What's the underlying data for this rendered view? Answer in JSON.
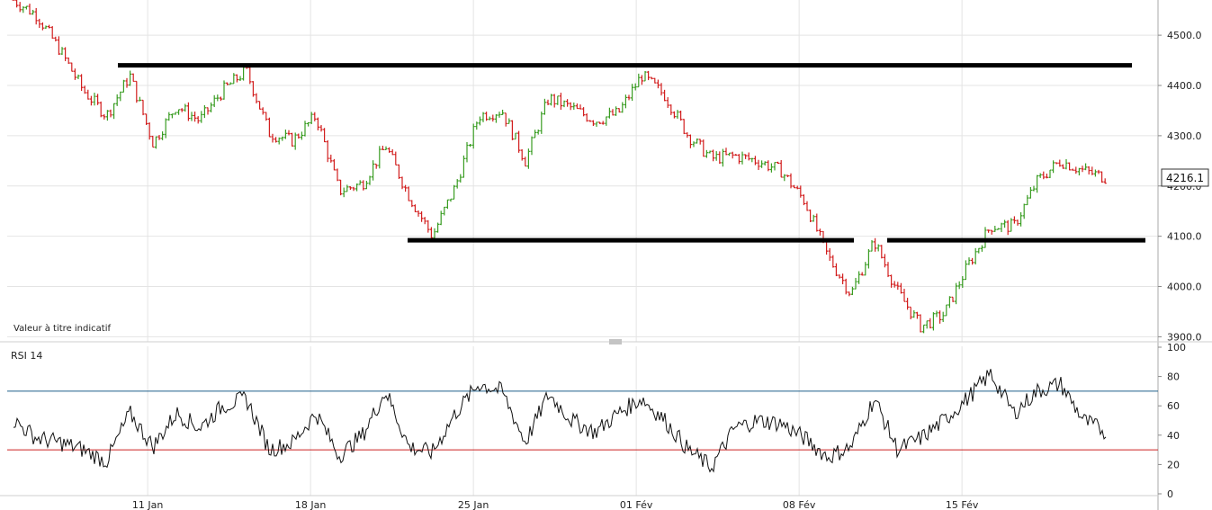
{
  "chart_data": {
    "type": "ohlc",
    "note": "Valeur à titre indicatif",
    "last_price": "4216.1",
    "x_labels": [
      "11 Jan",
      "18 Jan",
      "25 Jan",
      "01 Fév",
      "08 Fév",
      "15 Fév"
    ],
    "price_axis": {
      "ylim": [
        3890,
        4570
      ],
      "ticks": [
        3900,
        4000,
        4100,
        4200,
        4300,
        4400,
        4500
      ]
    },
    "colors": {
      "up": "#3a9d23",
      "down": "#d21f1f",
      "grid": "#e4e4e4",
      "support_resistance": "#000000",
      "overbought": "#1f5f8b",
      "oversold": "#cc2222"
    },
    "horizontal_levels": [
      {
        "price": 4440,
        "from": "11 Jan",
        "to": "22 Feb"
      },
      {
        "price": 4092,
        "from": "22 Jan",
        "to": "11 Feb"
      },
      {
        "price": 4092,
        "from": "12 Feb",
        "to": "22 Feb"
      }
    ],
    "price_path": [
      [
        "05 Jan",
        4570
      ],
      [
        "06 Jan",
        4540
      ],
      [
        "07 Jan",
        4470
      ],
      [
        "08 Jan",
        4390
      ],
      [
        "09 Jan",
        4340
      ],
      [
        "10 Jan",
        4420
      ],
      [
        "11 Jan",
        4285
      ],
      [
        "12 Jan",
        4360
      ],
      [
        "13 Jan",
        4330
      ],
      [
        "14 Jan",
        4390
      ],
      [
        "15 Jan",
        4430
      ],
      [
        "16 Jan",
        4305
      ],
      [
        "17 Jan",
        4290
      ],
      [
        "18 Jan",
        4340
      ],
      [
        "19 Jan",
        4190
      ],
      [
        "20 Jan",
        4205
      ],
      [
        "21 Jan",
        4280
      ],
      [
        "22 Jan",
        4180
      ],
      [
        "23 Jan",
        4100
      ],
      [
        "24 Jan",
        4200
      ],
      [
        "25 Jan",
        4340
      ],
      [
        "26 Jan",
        4350
      ],
      [
        "27 Jan",
        4250
      ],
      [
        "28 Jan",
        4375
      ],
      [
        "29 Jan",
        4355
      ],
      [
        "30 Jan",
        4330
      ],
      [
        "31 Jan",
        4345
      ],
      [
        "01 Feb",
        4420
      ],
      [
        "02 Feb",
        4380
      ],
      [
        "03 Feb",
        4300
      ],
      [
        "04 Feb",
        4255
      ],
      [
        "05 Feb",
        4260
      ],
      [
        "06 Feb",
        4250
      ],
      [
        "07 Feb",
        4230
      ],
      [
        "08 Feb",
        4170
      ],
      [
        "09 Feb",
        4060
      ],
      [
        "10 Feb",
        3985
      ],
      [
        "11 Feb",
        4090
      ],
      [
        "12 Feb",
        3990
      ],
      [
        "13 Feb",
        3920
      ],
      [
        "14 Feb",
        3945
      ],
      [
        "15 Feb",
        4040
      ],
      [
        "16 Feb",
        4120
      ],
      [
        "17 Feb",
        4120
      ],
      [
        "18 Feb",
        4210
      ],
      [
        "19 Feb",
        4250
      ],
      [
        "20 Feb",
        4230
      ],
      [
        "21 Feb",
        4216.1
      ]
    ],
    "indicator": {
      "name": "RSI 14",
      "ylim": [
        0,
        100
      ],
      "ticks": [
        0,
        20,
        40,
        60,
        80,
        100
      ],
      "overbought": 70,
      "oversold": 30,
      "path": [
        [
          "05 Jan",
          50
        ],
        [
          "06 Jan",
          38
        ],
        [
          "07 Jan",
          35
        ],
        [
          "08 Jan",
          30
        ],
        [
          "09 Jan",
          22
        ],
        [
          "10 Jan",
          55
        ],
        [
          "11 Jan",
          32
        ],
        [
          "12 Jan",
          55
        ],
        [
          "13 Jan",
          45
        ],
        [
          "14 Jan",
          60
        ],
        [
          "15 Jan",
          65
        ],
        [
          "16 Jan",
          30
        ],
        [
          "17 Jan",
          35
        ],
        [
          "18 Jan",
          55
        ],
        [
          "19 Jan",
          26
        ],
        [
          "20 Jan",
          40
        ],
        [
          "21 Jan",
          70
        ],
        [
          "22 Jan",
          32
        ],
        [
          "23 Jan",
          28
        ],
        [
          "24 Jan",
          55
        ],
        [
          "25 Jan",
          75
        ],
        [
          "26 Jan",
          70
        ],
        [
          "27 Jan",
          35
        ],
        [
          "28 Jan",
          68
        ],
        [
          "29 Jan",
          50
        ],
        [
          "30 Jan",
          42
        ],
        [
          "31 Jan",
          55
        ],
        [
          "01 Feb",
          65
        ],
        [
          "02 Feb",
          50
        ],
        [
          "03 Feb",
          30
        ],
        [
          "04 Feb",
          18
        ],
        [
          "05 Feb",
          45
        ],
        [
          "06 Feb",
          50
        ],
        [
          "07 Feb",
          48
        ],
        [
          "08 Feb",
          38
        ],
        [
          "09 Feb",
          25
        ],
        [
          "10 Feb",
          32
        ],
        [
          "11 Feb",
          65
        ],
        [
          "12 Feb",
          30
        ],
        [
          "13 Feb",
          38
        ],
        [
          "14 Feb",
          50
        ],
        [
          "15 Feb",
          65
        ],
        [
          "16 Feb",
          82
        ],
        [
          "17 Feb",
          55
        ],
        [
          "18 Feb",
          70
        ],
        [
          "19 Feb",
          75
        ],
        [
          "20 Feb",
          50
        ],
        [
          "21 Feb",
          42
        ]
      ]
    }
  }
}
